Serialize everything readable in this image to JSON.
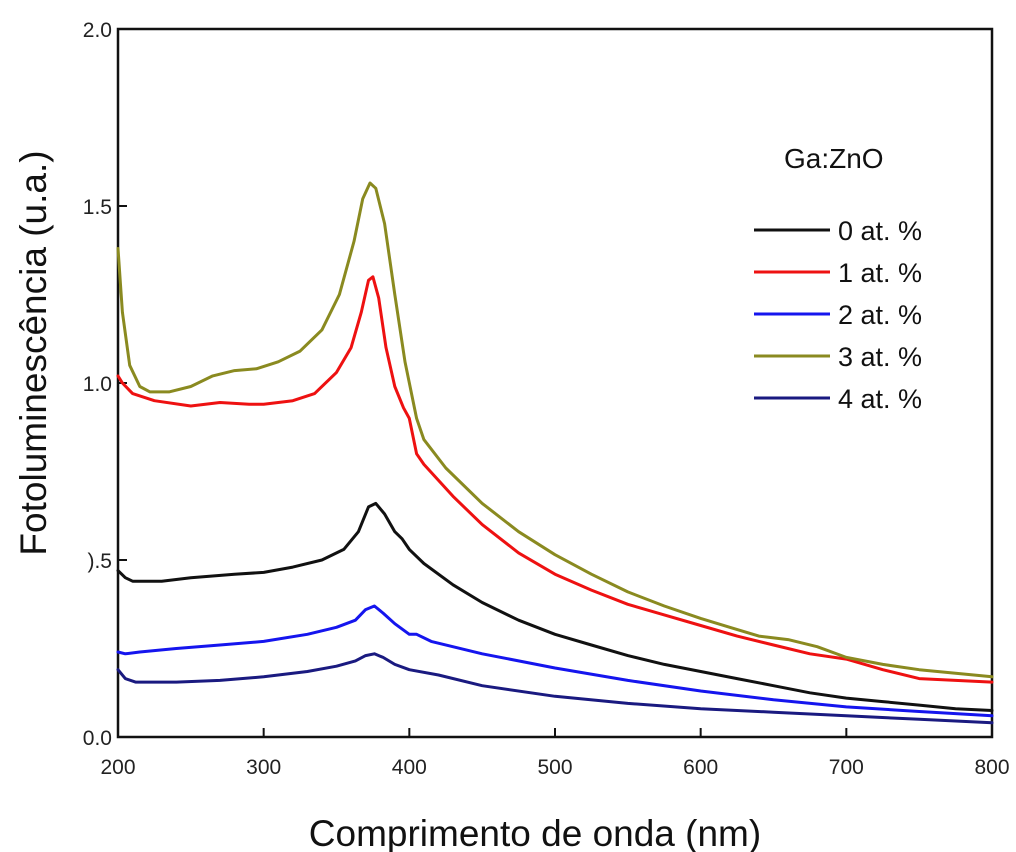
{
  "chart_data": {
    "type": "line",
    "xlabel": "Comprimento de onda (nm)",
    "ylabel": "Fotoluminescência (u.a.)",
    "xlim": [
      200,
      800
    ],
    "ylim": [
      0.0,
      2.0
    ],
    "xticks": [
      200,
      300,
      400,
      500,
      600,
      700,
      800
    ],
    "xtick_labels": [
      "200",
      "300",
      "400",
      "500",
      "600",
      "700",
      "800"
    ],
    "yticks": [
      0.0,
      0.5,
      1.0,
      1.5,
      2.0
    ],
    "ytick_labels": [
      "0.0",
      ").5",
      "1.0",
      "1.5",
      "2.0"
    ],
    "grid": false,
    "legend": {
      "title": "Ga:ZnO",
      "position": "top-right"
    },
    "series": [
      {
        "name": "0 at. %",
        "color": "#111111",
        "points": [
          [
            200,
            0.47
          ],
          [
            205,
            0.45
          ],
          [
            210,
            0.44
          ],
          [
            230,
            0.44
          ],
          [
            250,
            0.45
          ],
          [
            280,
            0.46
          ],
          [
            300,
            0.465
          ],
          [
            320,
            0.48
          ],
          [
            340,
            0.5
          ],
          [
            355,
            0.53
          ],
          [
            365,
            0.58
          ],
          [
            372,
            0.65
          ],
          [
            377,
            0.66
          ],
          [
            383,
            0.63
          ],
          [
            390,
            0.58
          ],
          [
            395,
            0.56
          ],
          [
            400,
            0.53
          ],
          [
            410,
            0.49
          ],
          [
            430,
            0.43
          ],
          [
            450,
            0.38
          ],
          [
            475,
            0.33
          ],
          [
            500,
            0.29
          ],
          [
            525,
            0.26
          ],
          [
            550,
            0.23
          ],
          [
            575,
            0.205
          ],
          [
            600,
            0.185
          ],
          [
            625,
            0.165
          ],
          [
            650,
            0.145
          ],
          [
            675,
            0.125
          ],
          [
            700,
            0.11
          ],
          [
            725,
            0.1
          ],
          [
            750,
            0.09
          ],
          [
            775,
            0.08
          ],
          [
            800,
            0.075
          ]
        ]
      },
      {
        "name": "1 at. %",
        "color": "#ee1111",
        "points": [
          [
            200,
            1.02
          ],
          [
            203,
            1.0
          ],
          [
            210,
            0.97
          ],
          [
            225,
            0.95
          ],
          [
            250,
            0.935
          ],
          [
            270,
            0.945
          ],
          [
            290,
            0.94
          ],
          [
            300,
            0.94
          ],
          [
            320,
            0.95
          ],
          [
            335,
            0.97
          ],
          [
            350,
            1.03
          ],
          [
            360,
            1.1
          ],
          [
            367,
            1.2
          ],
          [
            372,
            1.29
          ],
          [
            375,
            1.3
          ],
          [
            379,
            1.24
          ],
          [
            384,
            1.1
          ],
          [
            390,
            0.99
          ],
          [
            396,
            0.93
          ],
          [
            400,
            0.9
          ],
          [
            405,
            0.8
          ],
          [
            410,
            0.77
          ],
          [
            430,
            0.68
          ],
          [
            450,
            0.6
          ],
          [
            475,
            0.52
          ],
          [
            500,
            0.46
          ],
          [
            525,
            0.415
          ],
          [
            550,
            0.375
          ],
          [
            575,
            0.345
          ],
          [
            600,
            0.315
          ],
          [
            625,
            0.285
          ],
          [
            650,
            0.26
          ],
          [
            675,
            0.235
          ],
          [
            700,
            0.22
          ],
          [
            725,
            0.19
          ],
          [
            750,
            0.165
          ],
          [
            775,
            0.16
          ],
          [
            800,
            0.155
          ]
        ]
      },
      {
        "name": "2 at. %",
        "color": "#1515ee",
        "points": [
          [
            200,
            0.24
          ],
          [
            205,
            0.235
          ],
          [
            215,
            0.24
          ],
          [
            240,
            0.25
          ],
          [
            270,
            0.26
          ],
          [
            300,
            0.27
          ],
          [
            330,
            0.29
          ],
          [
            350,
            0.31
          ],
          [
            363,
            0.33
          ],
          [
            370,
            0.36
          ],
          [
            376,
            0.37
          ],
          [
            382,
            0.35
          ],
          [
            390,
            0.32
          ],
          [
            400,
            0.29
          ],
          [
            405,
            0.29
          ],
          [
            415,
            0.27
          ],
          [
            450,
            0.235
          ],
          [
            500,
            0.195
          ],
          [
            550,
            0.16
          ],
          [
            600,
            0.13
          ],
          [
            650,
            0.105
          ],
          [
            700,
            0.085
          ],
          [
            750,
            0.072
          ],
          [
            800,
            0.06
          ]
        ]
      },
      {
        "name": "3 at. %",
        "color": "#8a8a20",
        "points": [
          [
            200,
            1.38
          ],
          [
            203,
            1.2
          ],
          [
            208,
            1.05
          ],
          [
            215,
            0.99
          ],
          [
            222,
            0.975
          ],
          [
            235,
            0.975
          ],
          [
            250,
            0.99
          ],
          [
            265,
            1.02
          ],
          [
            280,
            1.035
          ],
          [
            295,
            1.04
          ],
          [
            310,
            1.06
          ],
          [
            325,
            1.09
          ],
          [
            340,
            1.15
          ],
          [
            352,
            1.25
          ],
          [
            362,
            1.4
          ],
          [
            368,
            1.52
          ],
          [
            373,
            1.565
          ],
          [
            377,
            1.55
          ],
          [
            383,
            1.45
          ],
          [
            390,
            1.25
          ],
          [
            397,
            1.06
          ],
          [
            405,
            0.9
          ],
          [
            410,
            0.84
          ],
          [
            425,
            0.76
          ],
          [
            450,
            0.66
          ],
          [
            475,
            0.58
          ],
          [
            500,
            0.515
          ],
          [
            525,
            0.46
          ],
          [
            550,
            0.41
          ],
          [
            575,
            0.37
          ],
          [
            600,
            0.335
          ],
          [
            620,
            0.31
          ],
          [
            640,
            0.285
          ],
          [
            660,
            0.275
          ],
          [
            680,
            0.255
          ],
          [
            700,
            0.225
          ],
          [
            725,
            0.205
          ],
          [
            750,
            0.19
          ],
          [
            775,
            0.18
          ],
          [
            800,
            0.17
          ]
        ]
      },
      {
        "name": "4 at. %",
        "color": "#1a1a80",
        "points": [
          [
            200,
            0.19
          ],
          [
            205,
            0.165
          ],
          [
            212,
            0.155
          ],
          [
            240,
            0.155
          ],
          [
            270,
            0.16
          ],
          [
            300,
            0.17
          ],
          [
            330,
            0.185
          ],
          [
            350,
            0.2
          ],
          [
            363,
            0.215
          ],
          [
            370,
            0.23
          ],
          [
            376,
            0.235
          ],
          [
            382,
            0.225
          ],
          [
            390,
            0.205
          ],
          [
            400,
            0.19
          ],
          [
            420,
            0.175
          ],
          [
            450,
            0.145
          ],
          [
            500,
            0.115
          ],
          [
            550,
            0.095
          ],
          [
            600,
            0.08
          ],
          [
            650,
            0.07
          ],
          [
            700,
            0.06
          ],
          [
            750,
            0.05
          ],
          [
            800,
            0.04
          ]
        ]
      }
    ]
  }
}
